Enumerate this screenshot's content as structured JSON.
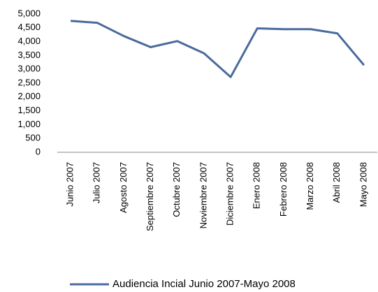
{
  "chart_data": {
    "type": "line",
    "categories": [
      "Junio 2007",
      "Julio 2007",
      "Agosto 2007",
      "Septiembre 2007",
      "Octubre 2007",
      "Noviembre 2007",
      "Diciembre 2007",
      "Enero 2008",
      "Febrero 2008",
      "Marzo 2008",
      "Abril 2008",
      "Mayo 2008"
    ],
    "series": [
      {
        "name": "Audiencia Incial Junio 2007-Mayo 2008",
        "color": "#4a6a9c",
        "values": [
          4750,
          4680,
          4200,
          3800,
          4020,
          3580,
          2720,
          4480,
          4450,
          4450,
          4300,
          3150
        ]
      }
    ],
    "ylim": [
      0,
      5000
    ],
    "yticks": [
      0,
      500,
      {
        "value": 1000,
        "label": "1,000"
      },
      {
        "value": 1500,
        "label": "1,500"
      },
      {
        "value": 2000,
        "label": "2,000"
      },
      {
        "value": 2500,
        "label": "2,500"
      },
      {
        "value": 3000,
        "label": "3,000"
      },
      {
        "value": 3500,
        "label": "3,500"
      },
      {
        "value": 4000,
        "label": "4,000"
      },
      {
        "value": 4500,
        "label": "4,500"
      },
      {
        "value": 5000,
        "label": "5,000"
      }
    ],
    "grid": false,
    "legend": "bottom"
  }
}
